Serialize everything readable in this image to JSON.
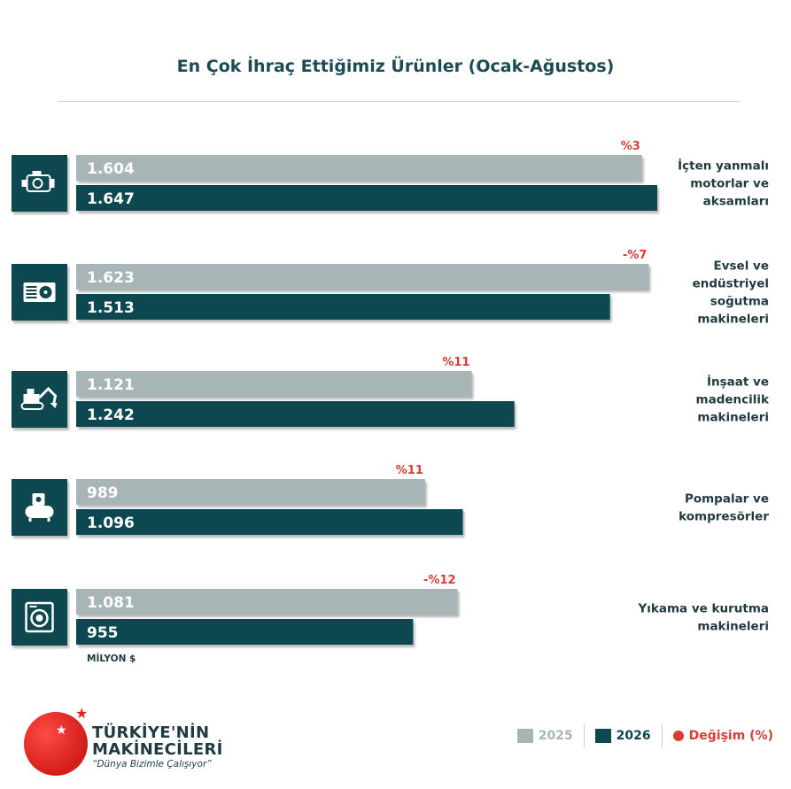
{
  "title": "En Çok İhraç Ettiğimiz Ürünler (Ocak-Ağustos)",
  "unit": "MİLYON $",
  "legend": {
    "prev_label": "2025",
    "curr_label": "2026",
    "change_label": "Değişim (%)"
  },
  "brand": {
    "line1": "TÜRKİYE'NİN",
    "line2": "MAKİNECİLERİ",
    "slogan": "“Dünya Bizimle Çalışıyor”"
  },
  "colors": {
    "prev": "#a8b5b6",
    "curr": "#0f4750",
    "change": "#e03a32",
    "icon_bg": "#0f4750"
  },
  "chart_data": {
    "type": "bar",
    "orientation": "horizontal",
    "title": "En Çok İhraç Ettiğimiz Ürünler (Ocak-Ağustos)",
    "unit": "MİLYON $",
    "xlim": [
      0,
      1700
    ],
    "categories": [
      "İçten yanmalı motorlar ve aksamları",
      "Evsel ve endüstriyel soğutma makineleri",
      "İnşaat ve madencilik makineleri",
      "Pompalar ve kompresörler",
      "Yıkama ve kurutma makineleri"
    ],
    "category_lines": [
      [
        "İçten yanmalı",
        "motorlar ve",
        "aksamları"
      ],
      [
        "Evsel ve",
        "endüstriyel",
        "soğutma",
        "makineleri"
      ],
      [
        "İnşaat ve",
        "madencilik",
        "makineleri"
      ],
      [
        "Pompalar ve",
        "kompresörler"
      ],
      [
        "Yıkama ve kurutma",
        "makineleri"
      ]
    ],
    "icons": [
      "engine-icon",
      "ac-unit-icon",
      "excavator-icon",
      "compressor-icon",
      "washing-machine-icon"
    ],
    "series": [
      {
        "name": "2025",
        "values": [
          1604,
          1623,
          1121,
          989,
          1081
        ],
        "labels": [
          "1.604",
          "1.623",
          "1.121",
          "989",
          "1.081"
        ]
      },
      {
        "name": "2026",
        "values": [
          1647,
          1513,
          1242,
          1096,
          955
        ],
        "labels": [
          "1.647",
          "1.513",
          "1.242",
          "1.096",
          "955"
        ]
      }
    ],
    "change_labels": [
      "%3",
      "-%7",
      "%11",
      "%11",
      "-%12"
    ],
    "change_values": [
      3,
      -7,
      11,
      11,
      -12
    ]
  }
}
